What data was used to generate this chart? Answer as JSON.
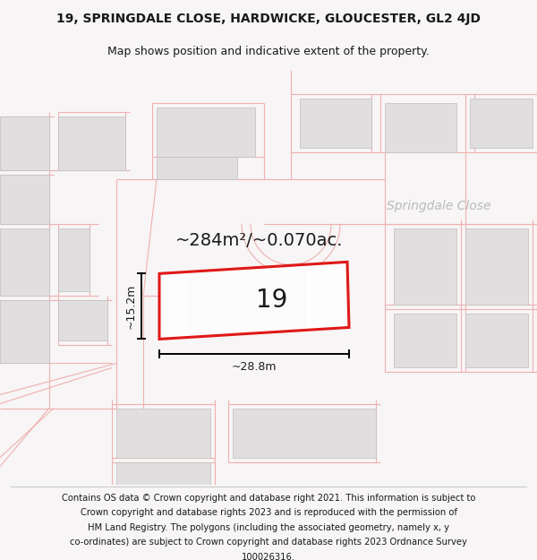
{
  "title": "19, SPRINGDALE CLOSE, HARDWICKE, GLOUCESTER, GL2 4JD",
  "subtitle": "Map shows position and indicative extent of the property.",
  "footer_lines": [
    "Contains OS data © Crown copyright and database right 2021. This information is subject to",
    "Crown copyright and database rights 2023 and is reproduced with the permission of",
    "HM Land Registry. The polygons (including the associated geometry, namely x, y",
    "co-ordinates) are subject to Crown copyright and database rights 2023 Ordnance Survey",
    "100026316."
  ],
  "area_label": "~284m²/~0.070ac.",
  "width_label": "~28.8m",
  "height_label": "~15.2m",
  "plot_number": "19",
  "street_label": "Springdale Close",
  "bg_color": "#f7f5f5",
  "map_bg": "#f7f5f5",
  "building_color": "#e0dede",
  "building_edge": "#c8c4c4",
  "road_line_color": "#f0b0b0",
  "plot_outline_color": "#dd0000",
  "title_fontsize": 10,
  "subtitle_fontsize": 9,
  "footer_fontsize": 7.2,
  "area_fontsize": 14,
  "number_fontsize": 20,
  "street_fontsize": 10
}
